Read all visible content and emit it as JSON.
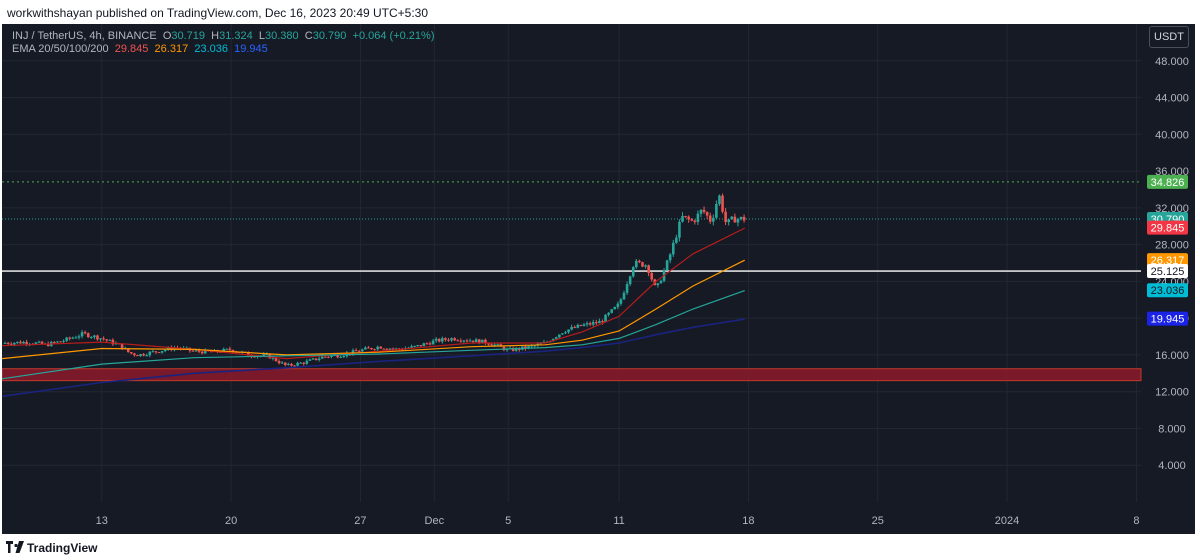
{
  "header": {
    "publisher": "workwithshayan published on TradingView.com, Dec 16, 2023 20:49 UTC+5:30"
  },
  "footer": {
    "brand": "TradingView"
  },
  "currency": "USDT",
  "legend": {
    "symbol": "INJ / TetherUS, 4h, BINANCE",
    "o_label": "O",
    "o": "30.719",
    "h_label": "H",
    "h": "31.324",
    "l_label": "L",
    "l": "30.380",
    "c_label": "C",
    "c": "30.790",
    "change": "+0.064 (+0.21%)",
    "ema_label": "EMA 20/50/100/200",
    "ema20": "29.845",
    "ema50": "26.317",
    "ema100": "23.036",
    "ema200": "19.945"
  },
  "colors": {
    "up": "#26a69a",
    "down": "#ef5350",
    "ema20": "#b71c1c",
    "ema50": "#ff9800",
    "ema100": "#26a69a",
    "ema200": "#1a237e"
  },
  "chart_data": {
    "type": "candlestick",
    "title": "",
    "y_ticks": [
      "4.000",
      "8.000",
      "12.000",
      "16.000",
      "20.000",
      "24.000",
      "28.000",
      "32.000",
      "36.000",
      "40.000",
      "44.000",
      "48.000"
    ],
    "ylim": [
      0,
      52
    ],
    "x_ticks": [
      {
        "label": "13",
        "day": 0
      },
      {
        "label": "20",
        "day": 7
      },
      {
        "label": "27",
        "day": 14
      },
      {
        "label": "Dec",
        "day": 18
      },
      {
        "label": "5",
        "day": 22
      },
      {
        "label": "11",
        "day": 28
      },
      {
        "label": "18",
        "day": 35
      },
      {
        "label": "25",
        "day": 42
      },
      {
        "label": "2024",
        "day": 49
      },
      {
        "label": "8",
        "day": 56
      }
    ],
    "xlim_days": [
      -5.4,
      56.25
    ],
    "close_points": [
      [
        -5.4,
        17.3
      ],
      [
        -4,
        17.4
      ],
      [
        -3,
        17.1
      ],
      [
        -2,
        17.6
      ],
      [
        -1,
        18.3
      ],
      [
        0,
        17.8
      ],
      [
        1,
        17.0
      ],
      [
        1.5,
        16.2
      ],
      [
        2,
        16.0
      ],
      [
        3,
        16.4
      ],
      [
        4,
        16.8
      ],
      [
        5,
        16.4
      ],
      [
        6,
        16.3
      ],
      [
        7,
        16.6
      ],
      [
        8,
        16.0
      ],
      [
        9,
        15.9
      ],
      [
        10,
        14.8
      ],
      [
        11,
        15.2
      ],
      [
        12,
        15.8
      ],
      [
        13,
        16.0
      ],
      [
        14,
        16.5
      ],
      [
        15,
        16.9
      ],
      [
        16,
        16.6
      ],
      [
        17,
        16.9
      ],
      [
        18,
        17.5
      ],
      [
        19,
        17.8
      ],
      [
        20,
        17.6
      ],
      [
        21,
        17.3
      ],
      [
        22,
        16.5
      ],
      [
        23,
        16.8
      ],
      [
        24,
        17.3
      ],
      [
        25,
        18.6
      ],
      [
        26,
        19.2
      ],
      [
        27,
        19.6
      ],
      [
        28,
        21.5
      ],
      [
        28.8,
        26.0
      ],
      [
        29.5,
        25.8
      ],
      [
        30,
        23.0
      ],
      [
        30.7,
        26.5
      ],
      [
        31.4,
        31.0
      ],
      [
        32,
        30.5
      ],
      [
        32.5,
        31.8
      ],
      [
        33,
        30.5
      ],
      [
        33.4,
        33.5
      ],
      [
        33.8,
        30.2
      ],
      [
        34.2,
        30.8
      ],
      [
        34.8,
        30.8
      ]
    ],
    "ema_series": [
      {
        "name": "EMA 20",
        "values": [
          [
            -5.4,
            17.0
          ],
          [
            0,
            17.4
          ],
          [
            5,
            16.6
          ],
          [
            10,
            15.6
          ],
          [
            15,
            16.4
          ],
          [
            20,
            17.3
          ],
          [
            24,
            17.3
          ],
          [
            26,
            18.5
          ],
          [
            28,
            20.2
          ],
          [
            30,
            24.0
          ],
          [
            32,
            27.0
          ],
          [
            34.8,
            29.8
          ]
        ]
      },
      {
        "name": "EMA 50",
        "values": [
          [
            -5.4,
            15.6
          ],
          [
            0,
            16.7
          ],
          [
            5,
            16.6
          ],
          [
            10,
            16.0
          ],
          [
            15,
            16.3
          ],
          [
            20,
            16.9
          ],
          [
            24,
            17.1
          ],
          [
            26,
            17.6
          ],
          [
            28,
            18.6
          ],
          [
            30,
            21.0
          ],
          [
            32,
            23.5
          ],
          [
            34.8,
            26.3
          ]
        ]
      },
      {
        "name": "EMA 100",
        "values": [
          [
            -5.4,
            13.4
          ],
          [
            0,
            15.0
          ],
          [
            5,
            15.7
          ],
          [
            10,
            15.9
          ],
          [
            15,
            16.1
          ],
          [
            20,
            16.5
          ],
          [
            24,
            16.8
          ],
          [
            26,
            17.1
          ],
          [
            28,
            17.8
          ],
          [
            30,
            19.3
          ],
          [
            32,
            21.0
          ],
          [
            34.8,
            23.0
          ]
        ]
      },
      {
        "name": "EMA 200",
        "values": [
          [
            -5.4,
            11.5
          ],
          [
            0,
            13.0
          ],
          [
            5,
            14.0
          ],
          [
            10,
            14.6
          ],
          [
            15,
            15.3
          ],
          [
            20,
            15.9
          ],
          [
            24,
            16.4
          ],
          [
            26,
            16.8
          ],
          [
            28,
            17.3
          ],
          [
            30,
            18.2
          ],
          [
            32,
            19.0
          ],
          [
            34.8,
            19.9
          ]
        ]
      }
    ],
    "last_price": 30.79,
    "levels": {
      "resistance_dotted": 34.826,
      "white_line": 25.125,
      "support_zone": [
        13.2,
        14.5
      ]
    },
    "price_labels": [
      {
        "text": "34.826",
        "value": 34.826,
        "bg": "#4caf50",
        "fg": "#ffffff"
      },
      {
        "text": "30.790",
        "value": 30.79,
        "bg": "#26a69a",
        "fg": "#ffffff"
      },
      {
        "text": "29.845",
        "value": 29.845,
        "bg": "#f23645",
        "fg": "#ffffff"
      },
      {
        "text": "26.317",
        "value": 26.317,
        "bg": "#ff9800",
        "fg": "#ffffff"
      },
      {
        "text": "25.125",
        "value": 25.125,
        "bg": "#ffffff",
        "fg": "#131722"
      },
      {
        "text": "23.036",
        "value": 23.036,
        "bg": "#00bcd4",
        "fg": "#131722"
      },
      {
        "text": "19.945",
        "value": 19.945,
        "bg": "#1a23e6",
        "fg": "#ffffff"
      }
    ]
  }
}
